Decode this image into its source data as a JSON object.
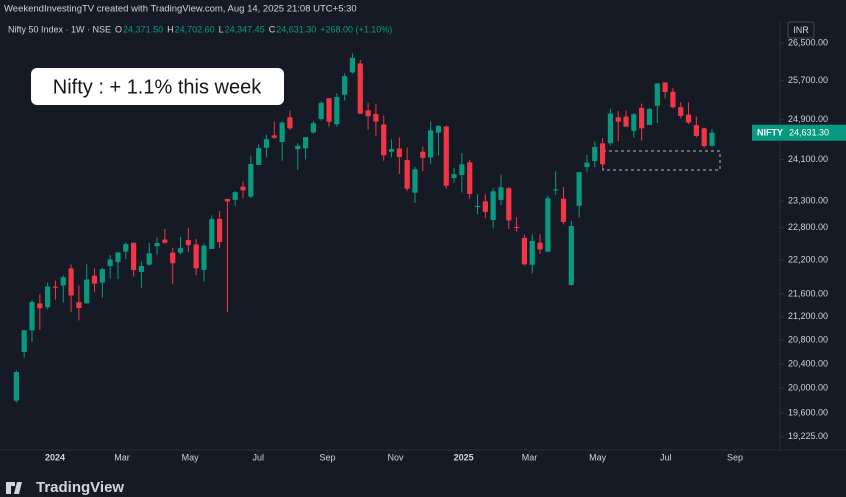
{
  "chart_data": {
    "type": "candlestick",
    "header": {
      "credit": "WeekendInvestingTV created with TradingView.com, Aug 14, 2025 21:08 UTC+5:30",
      "symbol": "Nifty 50 Index · 1W · NSE",
      "items": [
        {
          "key": "O",
          "value": "24,371.50"
        },
        {
          "key": "H",
          "value": "24,702.60"
        },
        {
          "key": "L",
          "value": "24,347.45"
        },
        {
          "key": "C",
          "value": "24,631.30"
        }
      ],
      "change": "+268.00 (+1.10%)"
    },
    "annotation": "Nifty : + 1.1% this week",
    "currency": "INR",
    "price_tag": {
      "name": "NIFTY",
      "value": 24631.3,
      "label": "24,631.30"
    },
    "logo": "TradingView",
    "up_color": "#089981",
    "down_color": "#f23645",
    "log_scale": true,
    "ylim": [
      19020,
      27000
    ],
    "yticks": [
      {
        "value": 19225,
        "label": "19,225.00"
      },
      {
        "value": 19600,
        "label": "19,600.00"
      },
      {
        "value": 20000,
        "label": "20,000.00"
      },
      {
        "value": 20400,
        "label": "20,400.00"
      },
      {
        "value": 20800,
        "label": "20,800.00"
      },
      {
        "value": 21200,
        "label": "21,200.00"
      },
      {
        "value": 21600,
        "label": "21,600.00"
      },
      {
        "value": 22200,
        "label": "22,200.00"
      },
      {
        "value": 22800,
        "label": "22,800.00"
      },
      {
        "value": 23300,
        "label": "23,300.00"
      },
      {
        "value": 24100,
        "label": "24,100.00"
      },
      {
        "value": 24900,
        "label": "24,900.00"
      },
      {
        "value": 25700,
        "label": "25,700.00"
      },
      {
        "value": 26500,
        "label": "26,500.00"
      }
    ],
    "xticks": [
      {
        "value": "2024-01",
        "label": "2024"
      },
      {
        "value": "2024-03",
        "label": "Mar"
      },
      {
        "value": "2024-05",
        "label": "May"
      },
      {
        "value": "2024-07",
        "label": "Jul"
      },
      {
        "value": "2024-09",
        "label": "Sep"
      },
      {
        "value": "2024-11",
        "label": "Nov"
      },
      {
        "value": "2025-01",
        "label": "2025"
      },
      {
        "value": "2025-03",
        "label": "Mar"
      },
      {
        "value": "2025-05",
        "label": "May"
      },
      {
        "value": "2025-07",
        "label": "Jul"
      },
      {
        "value": "2025-09",
        "label": "Sep"
      }
    ],
    "open": [
      19800,
      20601,
      20966,
      21434,
      21366,
      21727,
      21747,
      22053,
      21454,
      21434,
      21921,
      21800,
      22095,
      22170,
      22357,
      22517,
      21990,
      22121,
      22455,
      22579,
      22339,
      22336,
      22568,
      22489,
      22027,
      22404,
      22960,
      23337,
      23319,
      23570,
      23382,
      23992,
      24330,
      24577,
      24445,
      24943,
      24302,
      24320,
      24636,
      24906,
      25333,
      24803,
      25406,
      25872,
      26061,
      25084,
      25008,
      24798,
      24251,
      24315,
      24087,
      23455,
      24253,
      24140,
      24633,
      24754,
      23738,
      23796,
      24045,
      23195,
      23290,
      22940,
      23319,
      23543,
      22810,
      22608,
      22119,
      22521,
      22354,
      23515,
      23341,
      21758,
      23208,
      23949,
      24070,
      24419,
      24420,
      24941,
      24956,
      24669,
      25134,
      24787,
      25179,
      25661,
      25466,
      25149,
      24999,
      24782,
      24720,
      24371.5
    ],
    "high": [
      20291,
      20969,
      21492,
      21593,
      21801,
      21834,
      21928,
      22124,
      21750,
      22126,
      22053,
      22068,
      22297,
      22353,
      22526,
      22527,
      22180,
      22516,
      22620,
      22776,
      22427,
      22626,
      22794,
      22588,
      22502,
      23026,
      23110,
      23338,
      23490,
      23667,
      24174,
      24401,
      24592,
      24854,
      24861,
      25078,
      24419,
      24473,
      24867,
      25268,
      25333,
      25433,
      25849,
      26277,
      26134,
      25234,
      25212,
      24978,
      24498,
      24537,
      24336,
      23956,
      24354,
      24857,
      24781,
      24781,
      23939,
      24226,
      24089,
      23426,
      23426,
      23546,
      23807,
      23568,
      22994,
      22668,
      22676,
      22676,
      23402,
      23869,
      23566,
      22924,
      23852,
      24189,
      24457,
      24526,
      25116,
      25070,
      25079,
      25029,
      25223,
      25137,
      25655,
      25669,
      25548,
      25255,
      25250,
      24956,
      24734,
      24702.6
    ],
    "low": [
      19768,
      20507,
      20769,
      20977,
      21329,
      21500,
      21449,
      21285,
      21137,
      21429,
      21629,
      21530,
      21875,
      21860,
      22224,
      21906,
      21710,
      22100,
      22303,
      22503,
      21777,
      22305,
      22348,
      21932,
      21821,
      22404,
      22417,
      21281,
      23206,
      23350,
      23350,
      23992,
      24141,
      24508,
      24074,
      24686,
      23893,
      24100,
      24607,
      24874,
      24753,
      24753,
      25285,
      25847,
      25044,
      24694,
      24568,
      24074,
      24140,
      23816,
      23484,
      23263,
      23873,
      24008,
      24180,
      23537,
      23647,
      23460,
      23344,
      23047,
      22976,
      22787,
      23222,
      22774,
      22725,
      22104,
      21965,
      22315,
      22353,
      23412,
      22857,
      21744,
      22983,
      23847,
      23950,
      23935,
      24378,
      24462,
      24781,
      24526,
      24473,
      24824,
      24825,
      25331,
      25129,
      24918,
      24807,
      24535,
      24337,
      24347.45
    ],
    "close": [
      20268,
      20970,
      21457,
      21349,
      21731,
      21711,
      21895,
      21572,
      21352,
      21854,
      21782,
      22041,
      22213,
      22339,
      22494,
      22023,
      22097,
      22327,
      22514,
      22519,
      22147,
      22420,
      22476,
      22055,
      22466,
      22957,
      22531,
      23290,
      23465,
      23501,
      24010,
      24323,
      24502,
      24531,
      24834,
      24718,
      24367,
      24541,
      24823,
      25236,
      24852,
      25356,
      25791,
      26179,
      25014,
      24964,
      24854,
      24181,
      24305,
      24148,
      23532,
      23907,
      24131,
      24678,
      24768,
      23588,
      23813,
      24005,
      23432,
      23203,
      23092,
      23482,
      23560,
      22930,
      22796,
      22125,
      22552,
      22397,
      23350,
      23519,
      22904,
      22829,
      23852,
      24039,
      24347,
      24008,
      25020,
      24853,
      24751,
      25003,
      24719,
      25112,
      25638,
      25461,
      25149,
      24968,
      24837,
      24565,
      24363,
      24631.3
    ]
  }
}
